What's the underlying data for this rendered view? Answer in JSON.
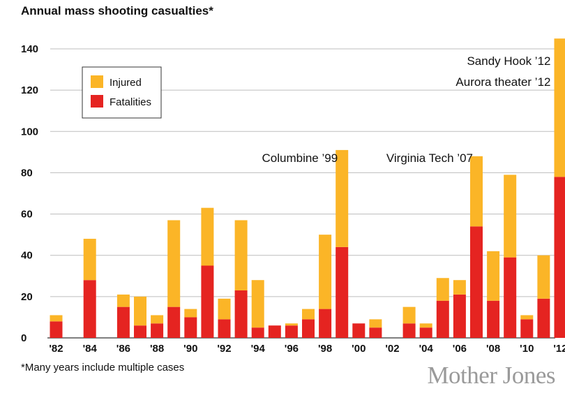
{
  "chart_data": {
    "type": "bar",
    "stacked": true,
    "title": "Annual mass shooting casualties*",
    "footnote": "*Many years include multiple cases",
    "brand": "Mother Jones",
    "xlabel": "",
    "ylabel": "",
    "ylim": [
      0,
      145
    ],
    "yticks": [
      0,
      20,
      40,
      60,
      80,
      100,
      120,
      140
    ],
    "grid": "horizontal",
    "legend_position": "top-left",
    "x": [
      1982,
      1983,
      1984,
      1985,
      1986,
      1987,
      1988,
      1989,
      1990,
      1991,
      1992,
      1993,
      1994,
      1995,
      1996,
      1997,
      1998,
      1999,
      2000,
      2001,
      2002,
      2003,
      2004,
      2005,
      2006,
      2007,
      2008,
      2009,
      2010,
      2011,
      2012
    ],
    "xtick_labels": [
      "'82",
      "'84",
      "'86",
      "'88",
      "'90",
      "'92",
      "'94",
      "'96",
      "'98",
      "'00",
      "'02",
      "'04",
      "'06",
      "'08",
      "'10",
      "'12"
    ],
    "series": [
      {
        "name": "Fatalities",
        "color": "#e52421",
        "values": [
          8,
          0,
          28,
          0,
          15,
          6,
          7,
          15,
          10,
          35,
          9,
          23,
          5,
          6,
          6,
          9,
          14,
          44,
          7,
          5,
          0,
          7,
          5,
          18,
          21,
          54,
          18,
          39,
          9,
          19,
          78
        ]
      },
      {
        "name": "Injured",
        "color": "#fbb527",
        "values": [
          3,
          0,
          20,
          0,
          6,
          14,
          4,
          42,
          4,
          28,
          10,
          34,
          23,
          0,
          1,
          5,
          36,
          47,
          0,
          4,
          0,
          8,
          2,
          11,
          7,
          34,
          24,
          40,
          2,
          21,
          67
        ]
      }
    ],
    "annotations": [
      {
        "text": "Columbine ’99",
        "x": 1999
      },
      {
        "text": "Virginia Tech ’07",
        "x": 2007
      },
      {
        "text": "Aurora theater ’12",
        "x": 2012
      },
      {
        "text": "Sandy Hook ’12",
        "x": 2012
      }
    ]
  }
}
